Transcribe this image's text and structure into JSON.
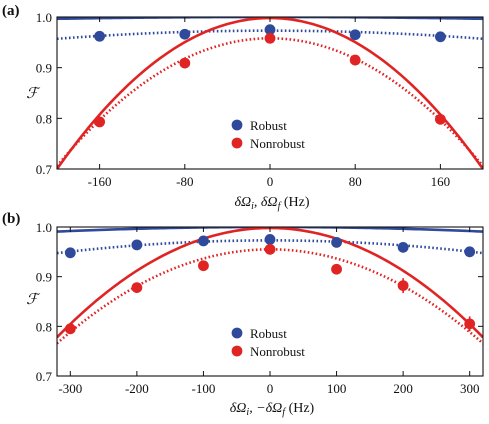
{
  "chart_data": [
    {
      "panel_label": "(a)",
      "type": "scatter",
      "xlabel": "δΩ_i,  δΩ_f (Hz)",
      "xlabel_parts": [
        "δΩ",
        "i",
        ",  δΩ",
        "f",
        " (Hz)"
      ],
      "ylabel": "ℱ",
      "xlim": [
        -200,
        200
      ],
      "ylim": [
        0.7,
        1.0
      ],
      "xticks": [
        -160,
        -80,
        0,
        80,
        160
      ],
      "xtick_labels": [
        "-160",
        "-80",
        "0",
        "80",
        "160"
      ],
      "yticks": [
        0.7,
        0.8,
        0.9,
        1.0
      ],
      "ytick_labels": [
        "0.7",
        "0.8",
        "0.9",
        "1.0"
      ],
      "legend_position": "center-bottom",
      "series": [
        {
          "name": "Robust",
          "color": "#2f4a9a",
          "points": [
            {
              "x": -160,
              "y": 0.962
            },
            {
              "x": -80,
              "y": 0.966
            },
            {
              "x": 0,
              "y": 0.975
            },
            {
              "x": 80,
              "y": 0.965
            },
            {
              "x": 160,
              "y": 0.961
            }
          ],
          "solid_curve": {
            "peak": 1.0,
            "curvature": 0.09
          },
          "dotted_curve": {
            "peak": 0.973,
            "curvature": 0.4
          }
        },
        {
          "name": "Nonrobust",
          "color": "#e02424",
          "points": [
            {
              "x": -160,
              "y": 0.793
            },
            {
              "x": -80,
              "y": 0.909
            },
            {
              "x": 0,
              "y": 0.958
            },
            {
              "x": 80,
              "y": 0.915
            },
            {
              "x": 160,
              "y": 0.798
            }
          ],
          "solid_curve": {
            "peak": 0.998,
            "curvature": 7.45
          },
          "dotted_curve": {
            "peak": 0.958,
            "curvature": 6.3
          }
        }
      ]
    },
    {
      "panel_label": "(b)",
      "type": "scatter",
      "xlabel": "δΩ_i,  −δΩ_f (Hz)",
      "xlabel_parts": [
        "δΩ",
        "i",
        ",  −δΩ",
        "f",
        " (Hz)"
      ],
      "ylabel": "ℱ",
      "xlim": [
        -320,
        320
      ],
      "ylim": [
        0.7,
        1.0
      ],
      "xticks": [
        -300,
        -200,
        -100,
        0,
        100,
        200,
        300
      ],
      "xtick_labels": [
        "-300",
        "-200",
        "-100",
        "0",
        "100",
        "200",
        "300"
      ],
      "yticks": [
        0.7,
        0.8,
        0.9,
        1.0
      ],
      "ytick_labels": [
        "0.7",
        "0.8",
        "0.9",
        "1.0"
      ],
      "legend_position": "center-bottom",
      "series": [
        {
          "name": "Robust",
          "color": "#2f4a9a",
          "points": [
            {
              "x": -300,
              "y": 0.948,
              "err": 0.008
            },
            {
              "x": -200,
              "y": 0.964,
              "err": 0.005
            },
            {
              "x": -100,
              "y": 0.972,
              "err": 0.005
            },
            {
              "x": 0,
              "y": 0.975,
              "err": 0.005
            },
            {
              "x": 100,
              "y": 0.969,
              "err": 0.005
            },
            {
              "x": 200,
              "y": 0.959,
              "err": 0.007
            },
            {
              "x": 300,
              "y": 0.95,
              "err": 0.008
            }
          ],
          "solid_curve": {
            "peak": 1.0,
            "curvature": 0.09
          },
          "dotted_curve": {
            "peak": 0.973,
            "curvature": 0.25
          }
        },
        {
          "name": "Nonrobust",
          "color": "#e02424",
          "points": [
            {
              "x": -300,
              "y": 0.795,
              "err": 0.008
            },
            {
              "x": -200,
              "y": 0.878,
              "err": 0.008
            },
            {
              "x": -100,
              "y": 0.922,
              "err": 0.008
            },
            {
              "x": 0,
              "y": 0.955,
              "err": 0.01
            },
            {
              "x": 100,
              "y": 0.915,
              "err": 0.01
            },
            {
              "x": 200,
              "y": 0.882,
              "err": 0.015
            },
            {
              "x": 300,
              "y": 0.805,
              "err": 0.015
            }
          ],
          "solid_curve": {
            "peak": 0.998,
            "curvature": 2.15
          },
          "dotted_curve": {
            "peak": 0.955,
            "curvature": 1.85
          }
        }
      ]
    }
  ]
}
